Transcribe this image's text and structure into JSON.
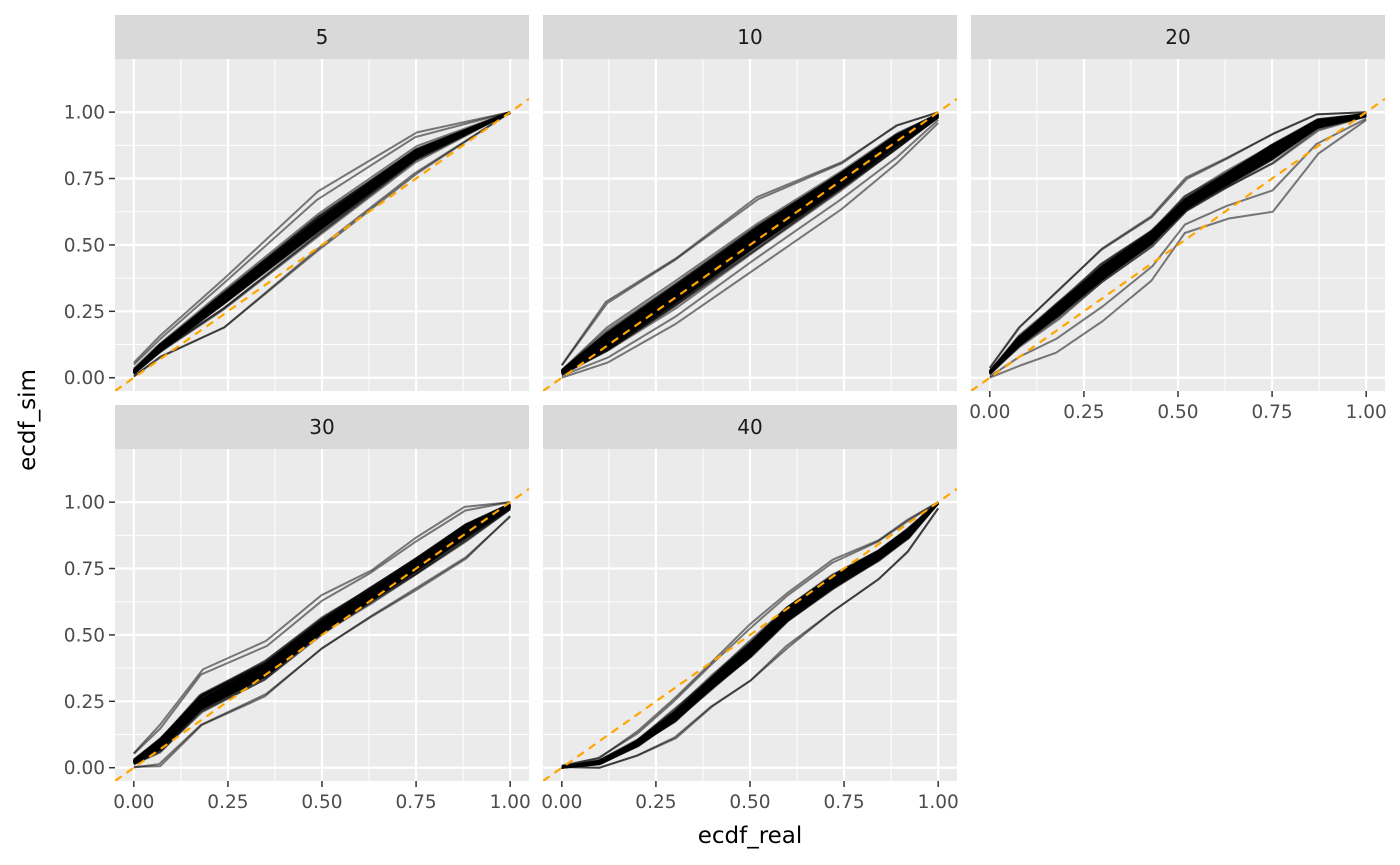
{
  "chart_data": {
    "type": "line",
    "xlabel": "ecdf_real",
    "ylabel": "ecdf_sim",
    "xlim": [
      -0.05,
      1.05
    ],
    "ylim": [
      -0.05,
      1.2
    ],
    "x_ticks": [
      "0.00",
      "0.25",
      "0.50",
      "0.75",
      "1.00"
    ],
    "y_ticks": [
      "0.00",
      "0.25",
      "0.50",
      "0.75",
      "1.00"
    ],
    "x_tick_values": [
      0,
      0.25,
      0.5,
      0.75,
      1
    ],
    "y_tick_values": [
      0,
      0.25,
      0.5,
      0.75,
      1
    ],
    "reference_line": {
      "slope": 1,
      "intercept": 0,
      "style": "dashed",
      "color": "#FFA500"
    },
    "panel_background": "#EBEBEB",
    "strip_background": "#D9D9D9",
    "line_color": "#000000",
    "line_opacity": 0.5,
    "replicate_lines_per_panel": 100,
    "panels": [
      {
        "label": "5",
        "x": [
          0,
          0.07,
          0.24,
          0.49,
          0.75,
          1.0
        ],
        "center": [
          0.02,
          0.11,
          0.3,
          0.57,
          0.84,
          1.0
        ],
        "low": [
          0.0,
          0.07,
          0.16,
          0.46,
          0.75,
          1.0
        ],
        "high": [
          0.06,
          0.16,
          0.38,
          0.71,
          0.93,
          1.0
        ]
      },
      {
        "label": "10",
        "x": [
          0,
          0.12,
          0.3,
          0.52,
          0.74,
          0.89,
          1.0
        ],
        "center": [
          0.02,
          0.13,
          0.31,
          0.53,
          0.75,
          0.9,
          0.99
        ],
        "low": [
          0.0,
          0.05,
          0.19,
          0.41,
          0.63,
          0.8,
          0.96
        ],
        "high": [
          0.05,
          0.31,
          0.47,
          0.7,
          0.82,
          0.96,
          1.0
        ]
      },
      {
        "label": "20",
        "x": [
          0,
          0.08,
          0.18,
          0.3,
          0.43,
          0.52,
          0.63,
          0.75,
          0.87,
          1.0
        ],
        "center": [
          0.02,
          0.14,
          0.26,
          0.4,
          0.53,
          0.65,
          0.75,
          0.86,
          0.96,
          0.99
        ],
        "low": [
          0.0,
          0.06,
          0.12,
          0.24,
          0.39,
          0.56,
          0.62,
          0.66,
          0.86,
          0.97
        ],
        "high": [
          0.04,
          0.2,
          0.34,
          0.5,
          0.62,
          0.77,
          0.84,
          0.93,
          1.0,
          1.0
        ]
      },
      {
        "label": "30",
        "x": [
          0,
          0.07,
          0.18,
          0.35,
          0.5,
          0.63,
          0.75,
          0.88,
          1.0
        ],
        "center": [
          0.02,
          0.09,
          0.24,
          0.37,
          0.53,
          0.65,
          0.76,
          0.89,
          0.99
        ],
        "low": [
          0.0,
          0.0,
          0.15,
          0.26,
          0.44,
          0.56,
          0.66,
          0.78,
          0.94
        ],
        "high": [
          0.05,
          0.15,
          0.35,
          0.46,
          0.63,
          0.73,
          0.85,
          0.97,
          1.0
        ]
      },
      {
        "label": "40",
        "x": [
          0,
          0.1,
          0.2,
          0.3,
          0.4,
          0.5,
          0.6,
          0.72,
          0.84,
          0.92,
          1.0
        ],
        "center": [
          0.0,
          0.02,
          0.09,
          0.19,
          0.32,
          0.44,
          0.58,
          0.7,
          0.8,
          0.88,
          1.0
        ],
        "low": [
          0.0,
          0.0,
          0.05,
          0.12,
          0.24,
          0.34,
          0.47,
          0.6,
          0.72,
          0.82,
          0.98
        ],
        "high": [
          0.01,
          0.04,
          0.14,
          0.27,
          0.41,
          0.55,
          0.67,
          0.79,
          0.86,
          0.94,
          1.0
        ]
      }
    ]
  }
}
